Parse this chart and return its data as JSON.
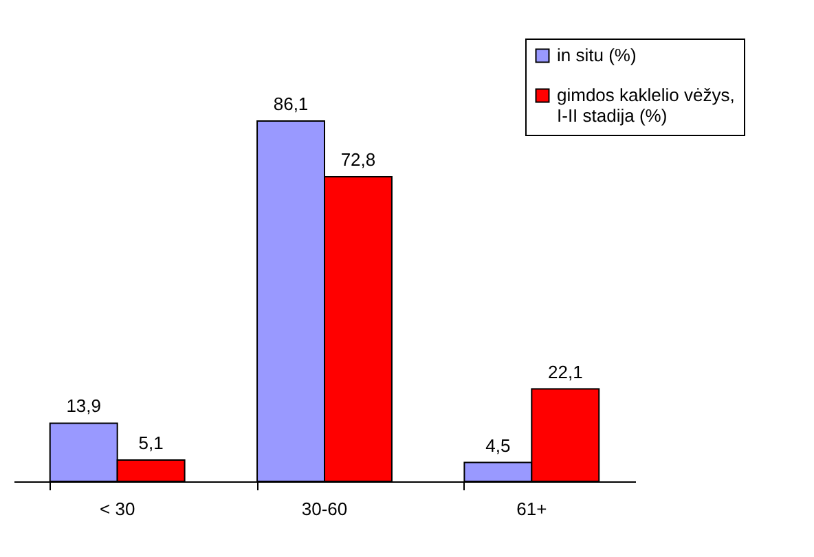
{
  "chart_data": {
    "type": "bar",
    "categories": [
      "< 30",
      "30-60",
      "61+"
    ],
    "series": [
      {
        "name": "in situ (%)",
        "color": "#9999ff",
        "values": [
          13.9,
          86.1,
          4.5
        ],
        "value_labels": [
          "13,9",
          "86,1",
          "4,5"
        ]
      },
      {
        "name": "gimdos kaklelio vėžys, I-II stadija (%)",
        "color": "#ff0000",
        "values": [
          5.1,
          72.8,
          22.1
        ],
        "value_labels": [
          "5,1",
          "72,8",
          "22,1"
        ]
      }
    ],
    "legend": "top right",
    "grid": false,
    "tick_labels": "x"
  }
}
